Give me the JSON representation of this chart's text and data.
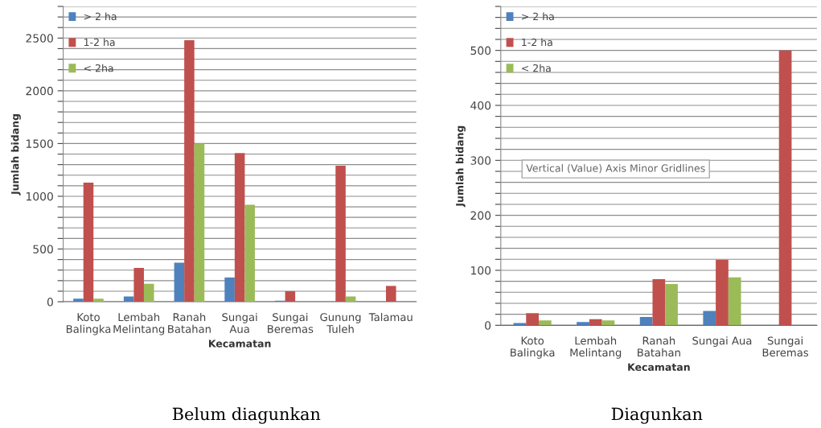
{
  "chart_data": [
    {
      "type": "bar",
      "xlabel": "Kecamatan",
      "ylabel": "Jumlah bidang",
      "categories": [
        "Koto\nBalingka",
        "Lembah\nMelintang",
        "Ranah\nBatahan",
        "Sungai\nAua",
        "Sungai\nBeremas",
        "Gunung\nTuleh",
        "Talamau"
      ],
      "series": [
        {
          "name": "> 2 ha",
          "color": "#4f81bd",
          "values": [
            30,
            50,
            370,
            230,
            10,
            0,
            0
          ]
        },
        {
          "name": "1-2 ha",
          "color": "#c0504d",
          "values": [
            1130,
            320,
            2480,
            1410,
            100,
            1290,
            150
          ]
        },
        {
          "name": "< 2ha",
          "color": "#9bbb59",
          "values": [
            30,
            170,
            1500,
            920,
            0,
            50,
            0
          ]
        }
      ],
      "ylim": [
        0,
        2800
      ],
      "yticks": [
        0,
        {
          "value": 100,
          "label": null
        },
        {
          "value": 200,
          "label": null
        },
        {
          "value": 300,
          "label": null
        },
        {
          "value": 400,
          "label": null
        },
        500,
        {
          "value": 600,
          "label": null
        },
        {
          "value": 700,
          "label": null
        },
        {
          "value": 800,
          "label": null
        },
        {
          "value": 900,
          "label": null
        },
        1000,
        {
          "value": 1100,
          "label": null
        },
        {
          "value": 1200,
          "label": null
        },
        {
          "value": 1300,
          "label": null
        },
        {
          "value": 1400,
          "label": null
        },
        1500,
        {
          "value": 1600,
          "label": null
        },
        {
          "value": 1700,
          "label": null
        },
        {
          "value": 1800,
          "label": null
        },
        {
          "value": 1900,
          "label": null
        },
        2000,
        {
          "value": 2100,
          "label": null
        },
        {
          "value": 2200,
          "label": null
        },
        {
          "value": 2300,
          "label": null
        },
        {
          "value": 2400,
          "label": null
        },
        2500,
        {
          "value": 2600,
          "label": null
        },
        {
          "value": 2700,
          "label": null
        },
        {
          "value": 2800,
          "label": null
        }
      ],
      "grid": "y",
      "legend": "top left",
      "annotations": [
        "Belum diagunkan"
      ]
    },
    {
      "type": "bar",
      "xlabel": "Kecamatan",
      "ylabel": "Jumlah bidang",
      "categories": [
        "Koto\nBalingka",
        "Lembah\nMelintang",
        "Ranah\nBatahan",
        "Sungai Aua",
        "Sungai\nBeremas"
      ],
      "series": [
        {
          "name": "> 2 ha",
          "color": "#4f81bd",
          "values": [
            4,
            6,
            15,
            26,
            0
          ]
        },
        {
          "name": "1-2 ha",
          "color": "#c0504d",
          "values": [
            22,
            11,
            84,
            119,
            500
          ]
        },
        {
          "name": "< 2ha",
          "color": "#9bbb59",
          "values": [
            9,
            9,
            75,
            87,
            0
          ]
        }
      ],
      "ylim": [
        0,
        580
      ],
      "yticks": [
        0,
        {
          "value": 20,
          "label": null
        },
        {
          "value": 40,
          "label": null
        },
        {
          "value": 60,
          "label": null
        },
        {
          "value": 80,
          "label": null
        },
        100,
        {
          "value": 120,
          "label": null
        },
        {
          "value": 140,
          "label": null
        },
        {
          "value": 160,
          "label": null
        },
        {
          "value": 180,
          "label": null
        },
        200,
        {
          "value": 220,
          "label": null
        },
        {
          "value": 240,
          "label": null
        },
        {
          "value": 260,
          "label": null
        },
        {
          "value": 280,
          "label": null
        },
        300,
        {
          "value": 320,
          "label": null
        },
        {
          "value": 340,
          "label": null
        },
        {
          "value": 360,
          "label": null
        },
        {
          "value": 380,
          "label": null
        },
        400,
        {
          "value": 420,
          "label": null
        },
        {
          "value": 440,
          "label": null
        },
        {
          "value": 460,
          "label": null
        },
        {
          "value": 480,
          "label": null
        },
        500,
        {
          "value": 520,
          "label": null
        },
        {
          "value": 540,
          "label": null
        },
        {
          "value": 560,
          "label": null
        },
        {
          "value": 580,
          "label": null
        }
      ],
      "grid": "y",
      "legend": "top left",
      "annotations": [
        "Vertical (Value) Axis Minor Gridlines",
        "Diagunkan"
      ]
    }
  ]
}
